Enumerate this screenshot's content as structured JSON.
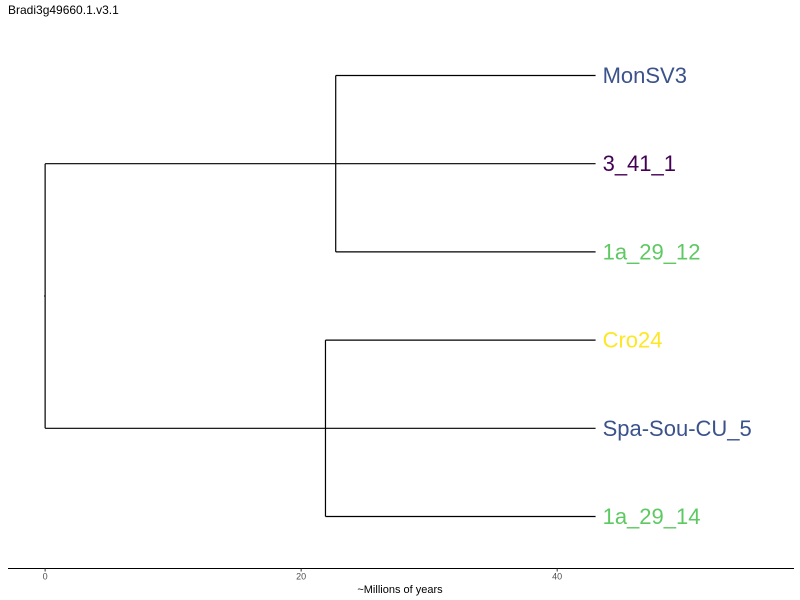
{
  "chart_data": {
    "type": "tree",
    "title": "Bradi3g49660.1.v3.1",
    "xlabel": "~Millions of years",
    "x_ticks": [
      0,
      20,
      40
    ],
    "xlim": [
      -2.9,
      58.5
    ],
    "tree": {
      "children": [
        {
          "x": 22.7,
          "children": [
            {
              "label": "MonSV3",
              "color": "#3b528b"
            },
            {
              "label": "3_41_1",
              "color": "#440154"
            },
            {
              "label": "1a_29_12",
              "color": "#5ec962"
            }
          ]
        },
        {
          "x": 21.9,
          "children": [
            {
              "label": "Cro24",
              "color": "#fde725"
            },
            {
              "label": "Spa-Sou-CU_5",
              "color": "#3b528b"
            },
            {
              "label": "1a_29_14",
              "color": "#5ec962"
            }
          ]
        }
      ]
    },
    "tip_x": 43.0,
    "line_color": "#000000"
  }
}
